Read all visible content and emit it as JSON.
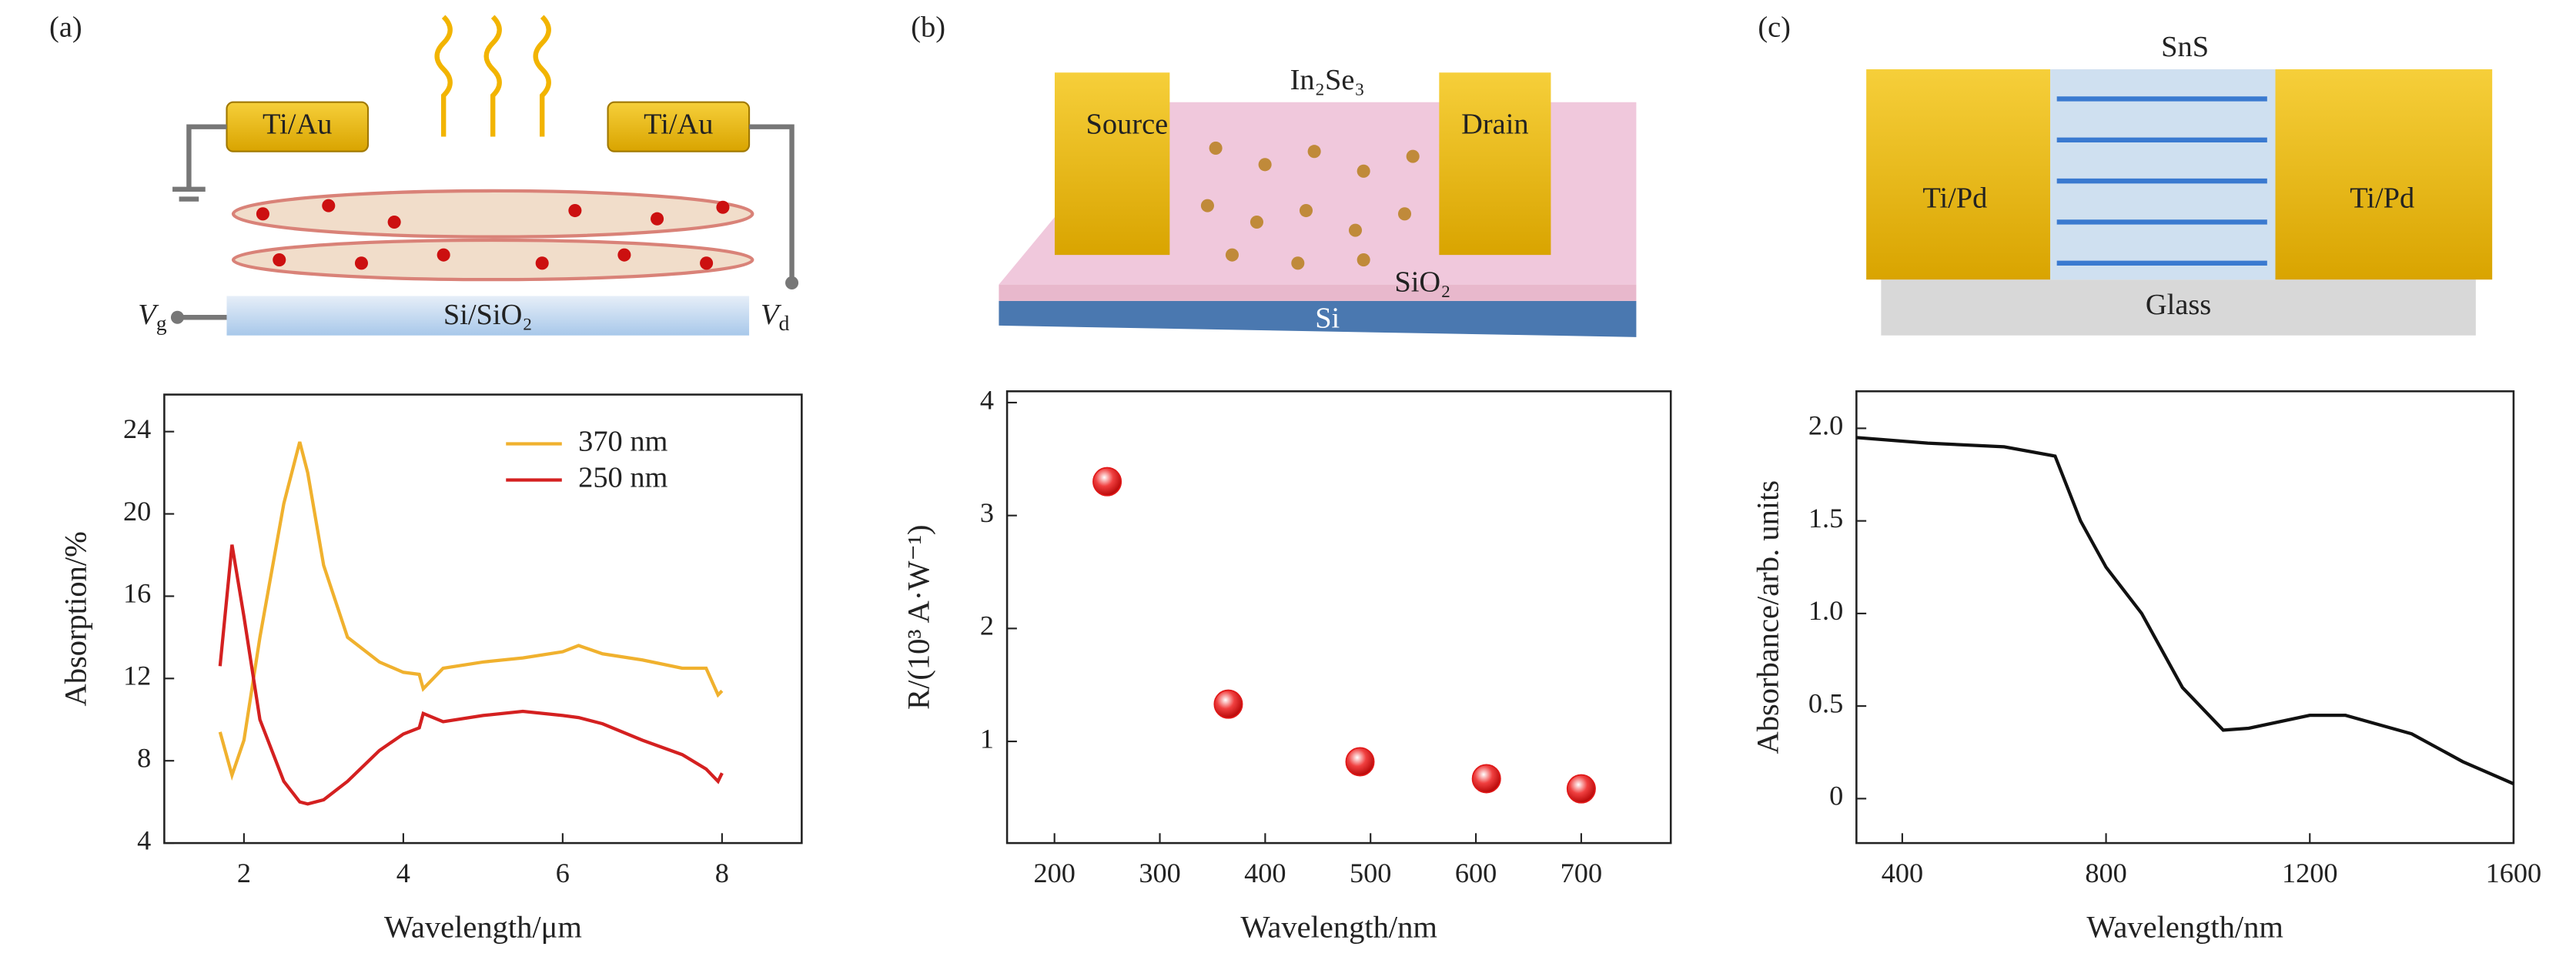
{
  "chart_data": [
    {
      "type": "line",
      "panel": "(a)",
      "xlabel": "Wavelength/μm",
      "ylabel": "Absorption/%",
      "x": [
        1.7,
        1.85,
        2.0,
        2.2,
        2.5,
        2.7,
        2.8,
        3.0,
        3.3,
        3.7,
        4.0,
        4.2,
        4.25,
        4.5,
        5.0,
        5.5,
        6.0,
        6.2,
        6.5,
        7.0,
        7.5,
        7.8,
        7.95,
        8.0
      ],
      "series": [
        {
          "name": "370 nm",
          "color": "#f0b12e",
          "values": [
            9.4,
            7.3,
            9,
            14,
            20.5,
            23.5,
            22,
            17.5,
            14,
            12.8,
            12.3,
            12.2,
            11.5,
            12.5,
            12.8,
            13,
            13.3,
            13.6,
            13.2,
            12.9,
            12.5,
            12.5,
            11.2,
            11.4
          ]
        },
        {
          "name": "250 nm",
          "color": "#d42020",
          "values": [
            12.6,
            18.5,
            15,
            10,
            7,
            6,
            5.9,
            6.1,
            7,
            8.5,
            9.3,
            9.6,
            10.3,
            9.9,
            10.2,
            10.4,
            10.2,
            10.1,
            9.8,
            9,
            8.3,
            7.6,
            7,
            7.4
          ]
        }
      ],
      "xlim": [
        1,
        9
      ],
      "xticks": [
        2,
        4,
        6,
        8
      ],
      "ylim": [
        4,
        25.8
      ],
      "yticks": [
        4,
        8,
        12,
        16,
        20,
        24
      ],
      "legend": "upper right"
    },
    {
      "type": "scatter",
      "panel": "(b)",
      "xlabel": "Wavelength/nm",
      "ylabel": "R/(10³ A·W⁻¹)",
      "x": [
        250,
        365,
        490,
        610,
        700
      ],
      "values": [
        3.3,
        1.33,
        0.82,
        0.67,
        0.58
      ],
      "color": "#e01818",
      "xlim": [
        155,
        785
      ],
      "xticks": [
        200,
        300,
        400,
        500,
        600,
        700
      ],
      "ylim": [
        0.1,
        4.1
      ],
      "yticks": [
        1,
        2,
        3,
        4
      ]
    },
    {
      "type": "line",
      "panel": "(c)",
      "xlabel": "Wavelength/nm",
      "ylabel": "Absorbance/arb. units",
      "x": [
        310,
        450,
        600,
        700,
        750,
        800,
        870,
        950,
        1030,
        1080,
        1200,
        1270,
        1400,
        1500,
        1600
      ],
      "series": [
        {
          "color": "#111111",
          "values": [
            1.95,
            1.92,
            1.9,
            1.85,
            1.5,
            1.25,
            1.0,
            0.6,
            0.37,
            0.38,
            0.45,
            0.45,
            0.35,
            0.2,
            0.08
          ]
        }
      ],
      "xlim": [
        310,
        1600
      ],
      "xticks": [
        400,
        800,
        1200,
        1600
      ],
      "ylim": [
        -0.24,
        2.2
      ],
      "yticks": [
        0,
        0.5,
        {
          "value": 1,
          "label": "1.0"
        },
        1.5,
        {
          "value": 2,
          "label": "2.0"
        }
      ]
    }
  ],
  "schematics": [
    {
      "contact_left": "Ti/Au",
      "contact_right": "Ti/Au",
      "substrate": "Si/SiO₂",
      "vg": {
        "base": "V",
        "sub": "g"
      },
      "vd": {
        "base": "V",
        "sub": "d"
      }
    },
    {
      "source": "Source",
      "drain": "Drain",
      "channel": "In₂Se₃",
      "oxide": "SiO₂",
      "substrate": "Si"
    },
    {
      "channel": "SnS",
      "contact_left": "Ti/Pd",
      "contact_right": "Ti/Pd",
      "substrate": "Glass"
    }
  ]
}
